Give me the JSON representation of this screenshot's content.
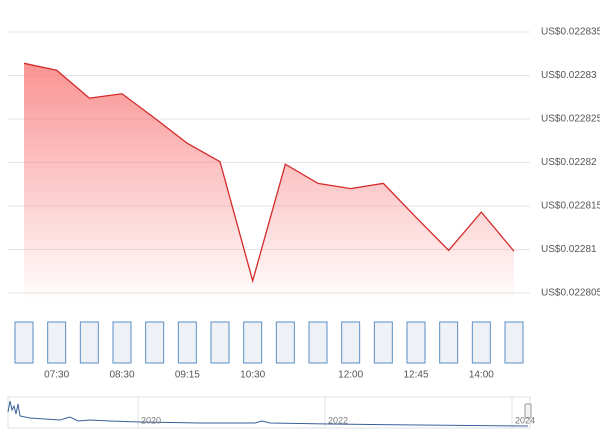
{
  "chart_data": {
    "type": "area",
    "categories": [
      null,
      "07:30",
      null,
      "08:30",
      null,
      "09:15",
      null,
      "10:30",
      null,
      null,
      "12:00",
      null,
      "12:45",
      null,
      "14:00",
      null
    ],
    "values": [
      0.0228314,
      0.0228306,
      0.0228274,
      0.0228279,
      0.0228251,
      0.0228222,
      0.0228201,
      0.0228064,
      0.0228198,
      0.0228176,
      0.022817,
      0.0228176,
      0.0228137,
      0.0228099,
      0.0228143,
      0.0228098
    ],
    "color": "#d42a2a",
    "ylim": [
      0.022805,
      0.022835
    ],
    "yticks": [
      {
        "value": 0.022805,
        "label": "US$0.022805"
      },
      {
        "value": 0.02281,
        "label": "US$0.02281"
      },
      {
        "value": 0.022815,
        "label": "US$0.022815"
      },
      {
        "value": 0.02282,
        "label": "US$0.02282"
      },
      {
        "value": 0.022825,
        "label": "US$0.022825"
      },
      {
        "value": 0.02283,
        "label": "US$0.02283"
      },
      {
        "value": 0.022835,
        "label": "US$0.022835"
      }
    ],
    "grid": true,
    "navigator_labels": [
      "2020",
      "2022",
      "2024"
    ]
  }
}
